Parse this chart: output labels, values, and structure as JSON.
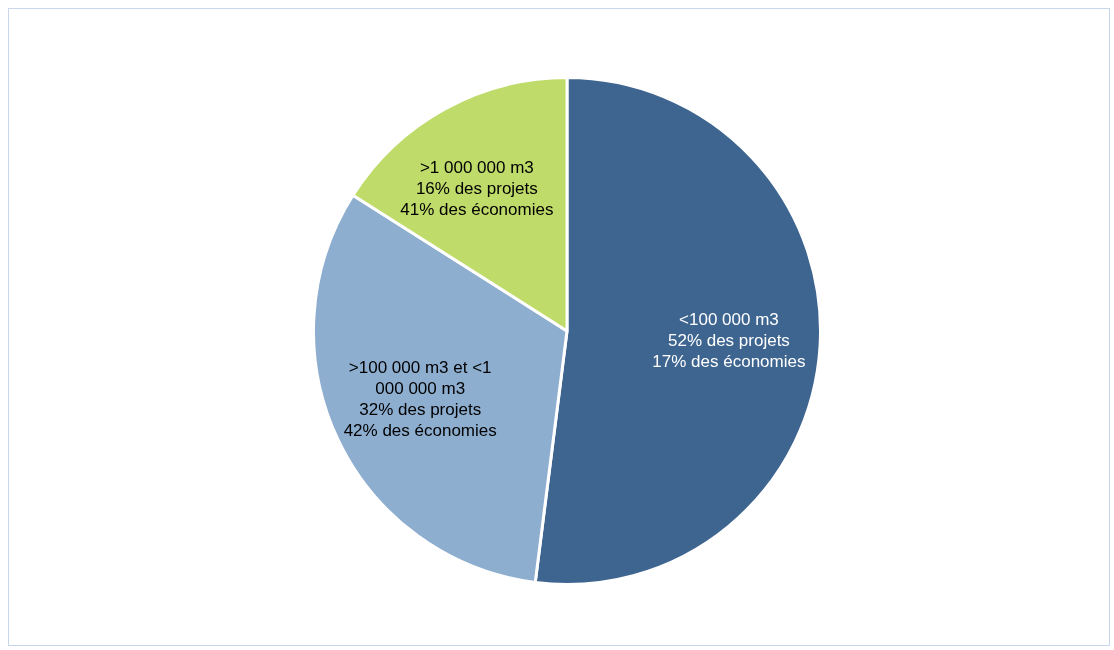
{
  "chart_data": {
    "type": "pie",
    "categories": [
      "<100 000 m3",
      ">100 000 m3 et <1 000 000 m3",
      ">1 000 000 m3"
    ],
    "values": [
      52,
      32,
      16
    ],
    "value_labels": [
      "52% des projets\n17% des économies",
      "32% des projets\n42% des économies",
      "16% des projets\n41% des économies"
    ],
    "colors": [
      "#3e6590",
      "#8eaed0",
      "#bfdb6a"
    ],
    "legend": false
  }
}
